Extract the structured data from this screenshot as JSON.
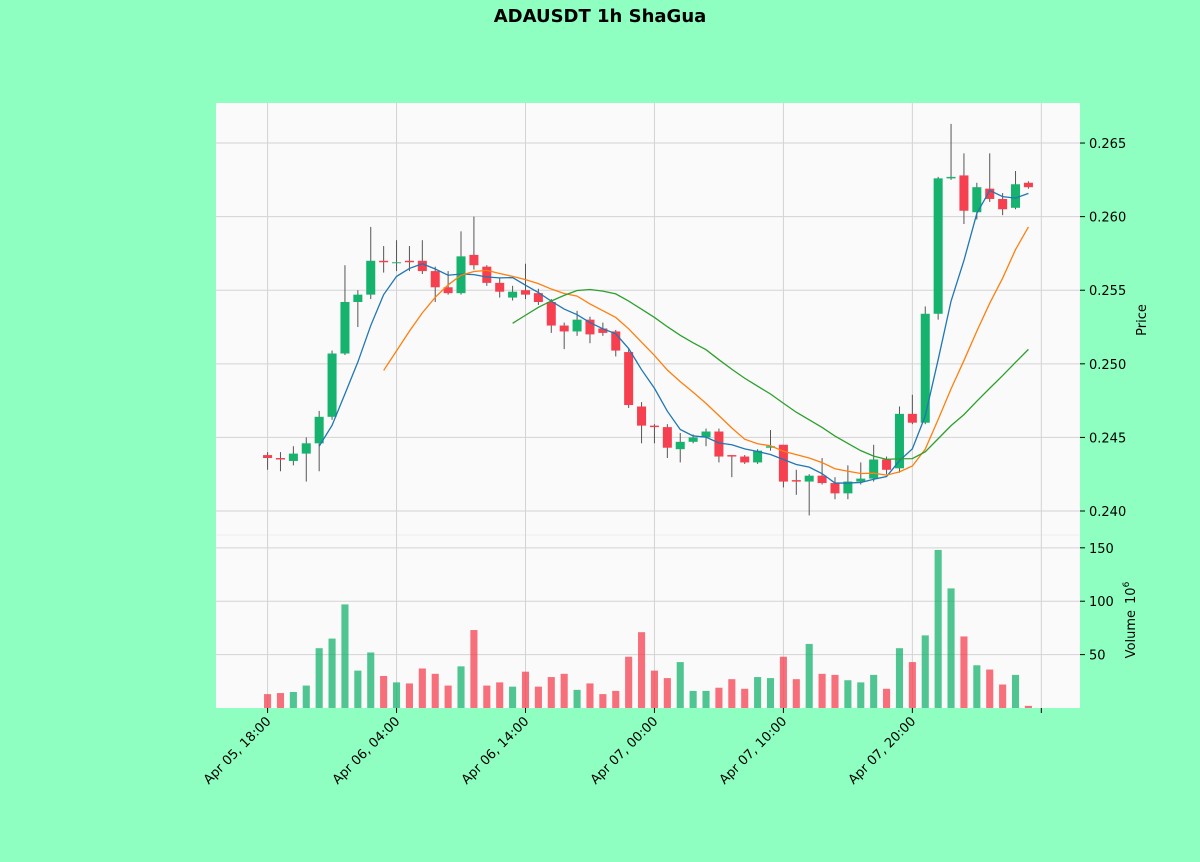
{
  "chart_data": {
    "type": "candlestick",
    "title": "ADAUSDT 1h ShaGua",
    "ylabel": "Price",
    "volume_label": "Volume",
    "volume_unit_base": "10",
    "volume_unit_exp": "6",
    "up_color": "#16b36e",
    "down_color": "#f6404f",
    "wick_color": "#555555",
    "grid": true,
    "xlim": [
      -4,
      63
    ],
    "xticks": [
      {
        "value": 0,
        "label": "Apr 05, 18:00"
      },
      {
        "value": 10,
        "label": "Apr 06, 04:00"
      },
      {
        "value": 20,
        "label": "Apr 06, 14:00"
      },
      {
        "value": 30,
        "label": "Apr 07, 00:00"
      },
      {
        "value": 40,
        "label": "Apr 07, 10:00"
      },
      {
        "value": 50,
        "label": "Apr 07, 20:00"
      },
      {
        "value": 60,
        "label": null
      }
    ],
    "ylim": [
      0.23837,
      0.26772
    ],
    "yticks": [
      {
        "value": 0.24,
        "label": "0.240"
      },
      0.245,
      {
        "value": 0.25,
        "label": "0.250"
      },
      0.255,
      {
        "value": 0.26,
        "label": "0.260"
      },
      0.265
    ],
    "y2lim": [
      0,
      162
    ],
    "y2ticks": [
      50,
      100,
      150
    ],
    "open": [
      0.2438,
      0.2436,
      0.2434,
      0.2439,
      0.2446,
      0.2464,
      0.2507,
      0.2542,
      0.2547,
      0.257,
      0.2569,
      0.257,
      0.257,
      0.2563,
      0.2552,
      0.2548,
      0.2574,
      0.2566,
      0.2555,
      0.2545,
      0.255,
      0.2548,
      0.2542,
      0.2526,
      0.2522,
      0.253,
      0.2524,
      0.2522,
      0.2508,
      0.2471,
      0.2458,
      0.2457,
      0.2442,
      0.2447,
      0.245,
      0.2454,
      0.2438,
      0.2437,
      0.2433,
      0.2443,
      0.2445,
      0.2421,
      0.242,
      0.2424,
      0.2419,
      0.2412,
      0.242,
      0.2422,
      0.2435,
      0.2429,
      0.2466,
      0.246,
      0.2534,
      0.2626,
      0.2628,
      0.2603,
      0.2619,
      0.2612,
      0.2606,
      0.2623
    ],
    "high": [
      0.244,
      0.244,
      0.2444,
      0.245,
      0.2468,
      0.2509,
      0.2567,
      0.255,
      0.2593,
      0.258,
      0.2584,
      0.258,
      0.2584,
      0.2566,
      0.2563,
      0.259,
      0.26,
      0.2567,
      0.2558,
      0.2553,
      0.2568,
      0.2551,
      0.2544,
      0.2528,
      0.2536,
      0.2532,
      0.2528,
      0.2523,
      0.251,
      0.2474,
      0.2459,
      0.2459,
      0.2453,
      0.2452,
      0.2456,
      0.2456,
      0.2438,
      0.2438,
      0.2442,
      0.2455,
      0.2445,
      0.2428,
      0.2425,
      0.2436,
      0.2423,
      0.2431,
      0.2433,
      0.2445,
      0.2437,
      0.2471,
      0.2479,
      0.2539,
      0.2627,
      0.2663,
      0.2643,
      0.2623,
      0.2643,
      0.2616,
      0.2631,
      0.2624
    ],
    "low": [
      0.2428,
      0.2427,
      0.2431,
      0.242,
      0.2427,
      0.2462,
      0.2506,
      0.2525,
      0.2544,
      0.2562,
      0.2563,
      0.2563,
      0.2561,
      0.2542,
      0.2547,
      0.2547,
      0.2564,
      0.2553,
      0.2545,
      0.2543,
      0.2544,
      0.254,
      0.2521,
      0.251,
      0.2519,
      0.2514,
      0.2519,
      0.2505,
      0.247,
      0.2446,
      0.2446,
      0.2436,
      0.2433,
      0.2446,
      0.2444,
      0.2433,
      0.2423,
      0.2432,
      0.2432,
      0.2441,
      0.2416,
      0.2411,
      0.2397,
      0.2418,
      0.2408,
      0.2408,
      0.2418,
      0.242,
      0.2425,
      0.2426,
      0.2459,
      0.2459,
      0.253,
      0.2625,
      0.2595,
      0.2598,
      0.261,
      0.2601,
      0.2605,
      0.2619
    ],
    "close": [
      0.2436,
      0.2435,
      0.2439,
      0.2446,
      0.2464,
      0.2507,
      0.2542,
      0.2547,
      0.257,
      0.2569,
      0.2569,
      0.2569,
      0.2563,
      0.2552,
      0.2548,
      0.2573,
      0.2567,
      0.2555,
      0.2549,
      0.2549,
      0.2547,
      0.2542,
      0.2526,
      0.2522,
      0.253,
      0.252,
      0.2521,
      0.2509,
      0.2472,
      0.2458,
      0.2457,
      0.2443,
      0.2447,
      0.245,
      0.2454,
      0.2437,
      0.2437,
      0.2433,
      0.2441,
      0.2444,
      0.242,
      0.242,
      0.2424,
      0.2419,
      0.2412,
      0.242,
      0.2422,
      0.2435,
      0.2428,
      0.2466,
      0.246,
      0.2534,
      0.2626,
      0.2627,
      0.2604,
      0.262,
      0.2612,
      0.2605,
      0.2622,
      0.262
    ],
    "volume": [
      13,
      14,
      15,
      21,
      56,
      65,
      97,
      35,
      52,
      30,
      24,
      23,
      37,
      32,
      21,
      39,
      73,
      21,
      24,
      20,
      34,
      20,
      29,
      32,
      17,
      23,
      13,
      16,
      48,
      71,
      35,
      28,
      43,
      16,
      16,
      19,
      27,
      18,
      29,
      28,
      48,
      27,
      60,
      32,
      31,
      26,
      24,
      31,
      18,
      56,
      43,
      68,
      148,
      112,
      67,
      40,
      36,
      22,
      31,
      2
    ],
    "series": [
      {
        "color": "#1f77b4",
        "values": [
          null,
          null,
          null,
          null,
          0.2444,
          0.24582,
          0.24796,
          0.25012,
          0.2526,
          0.2547,
          0.25594,
          0.25648,
          0.2568,
          0.25644,
          0.25602,
          0.2561,
          0.25606,
          0.2559,
          0.25584,
          0.25586,
          0.25534,
          0.25484,
          0.25426,
          0.25372,
          0.25334,
          0.2528,
          0.25238,
          0.25204,
          0.25104,
          0.2496,
          0.24834,
          0.24678,
          0.24554,
          0.2451,
          0.24502,
          0.24462,
          0.2445,
          0.24422,
          0.24404,
          0.24384,
          0.2435,
          0.24316,
          0.24298,
          0.24254,
          0.2419,
          0.2419,
          0.24194,
          0.24216,
          0.24234,
          0.24342,
          0.24422,
          0.24646,
          0.25028,
          0.25426,
          0.25702,
          0.26022,
          0.26178,
          0.26136,
          0.26126,
          0.26158
        ]
      },
      {
        "color": "#ff7f0e",
        "values": [
          null,
          null,
          null,
          null,
          null,
          null,
          null,
          null,
          null,
          0.24955,
          0.25088,
          0.25222,
          0.25346,
          0.25452,
          0.25536,
          0.25602,
          0.25627,
          0.25635,
          0.25614,
          0.25594,
          0.25572,
          0.25545,
          0.25508,
          0.25478,
          0.2546,
          0.25407,
          0.25361,
          0.25315,
          0.25238,
          0.25147,
          0.25057,
          0.24958,
          0.24879,
          0.24807,
          0.24731,
          0.24648,
          0.24564,
          0.24488,
          0.24457,
          0.24443,
          0.24406,
          0.24383,
          0.2436,
          0.24329,
          0.24287,
          0.2427,
          0.24255,
          0.24257,
          0.24244,
          0.24266,
          0.24306,
          0.2442,
          0.24622,
          0.2483,
          0.25022,
          0.25222,
          0.25412,
          0.25582,
          0.25776,
          0.2593
        ]
      },
      {
        "color": "#2ca02c",
        "values": [
          null,
          null,
          null,
          null,
          null,
          null,
          null,
          null,
          null,
          null,
          null,
          null,
          null,
          null,
          null,
          null,
          null,
          null,
          null,
          0.25275,
          0.2533,
          0.25384,
          0.25427,
          0.25465,
          0.25498,
          0.25505,
          0.25494,
          0.25475,
          0.25426,
          0.25371,
          0.25315,
          0.25252,
          0.25194,
          0.25143,
          0.25096,
          0.25028,
          0.24963,
          0.24902,
          0.24848,
          0.24795,
          0.24732,
          0.24671,
          0.2462,
          0.24568,
          0.24509,
          0.24459,
          0.2441,
          0.24373,
          0.24351,
          0.24355,
          0.24356,
          0.24402,
          0.24491,
          0.2458,
          0.24655,
          0.24746,
          0.24834,
          0.2492,
          0.2501,
          0.25098
        ]
      }
    ]
  }
}
